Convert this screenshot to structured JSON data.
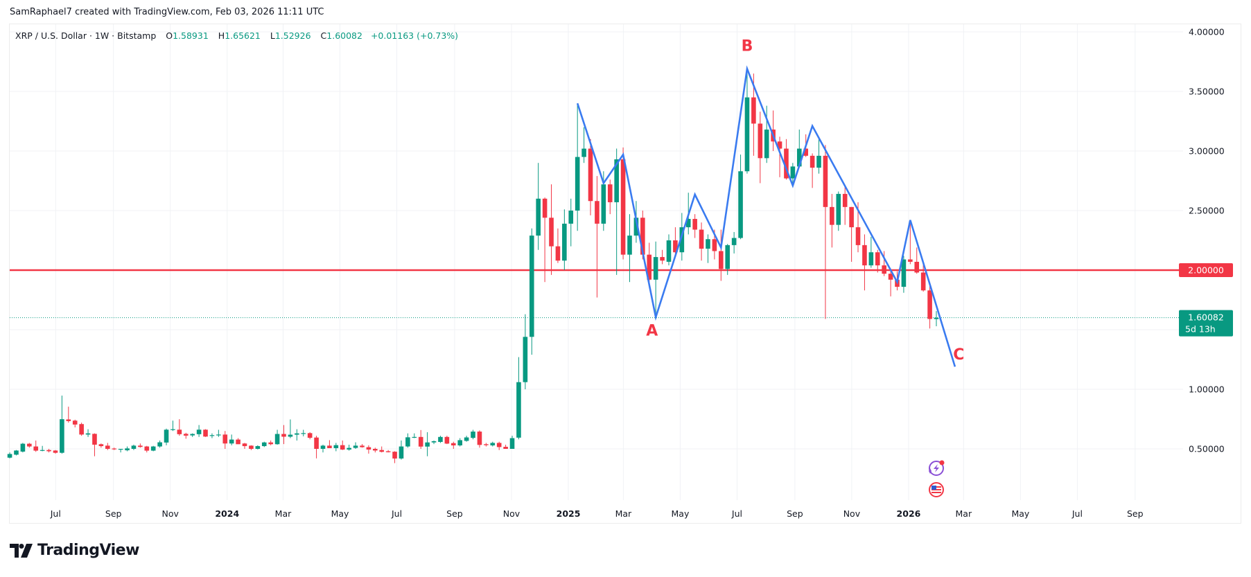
{
  "header": {
    "text": "SamRaphael7 created with TradingView.com, Feb 03, 2026 11:11 UTC"
  },
  "legend": {
    "symbol": "XRP / U.S. Dollar · 1W · Bitstamp",
    "o_label": "O",
    "o": "1.58931",
    "h_label": "H",
    "h": "1.65621",
    "l_label": "L",
    "l": "1.52926",
    "c_label": "C",
    "c": "1.60082",
    "change": "+0.01163 (+0.73%)"
  },
  "colors": {
    "up": "#089981",
    "down": "#f23645",
    "wave": "#3a7bf0",
    "level": "#f23645",
    "grid": "#f0f3fa"
  },
  "price_axis": {
    "ticks": [
      {
        "value": 4.0,
        "label": "4.00000"
      },
      {
        "value": 3.5,
        "label": "3.50000"
      },
      {
        "value": 3.0,
        "label": "3.00000"
      },
      {
        "value": 2.5,
        "label": "2.50000"
      },
      {
        "value": 1.0,
        "label": "1.00000"
      },
      {
        "value": 0.5,
        "label": "0.50000"
      }
    ],
    "level_line": {
      "value": 2.0,
      "label": "2.00000"
    },
    "last_price": {
      "value": 1.60082,
      "label": "1.60082",
      "countdown": "5d 13h"
    }
  },
  "time_axis": {
    "ticks": [
      {
        "date": "2023-07-01",
        "label": "Jul",
        "bold": false
      },
      {
        "date": "2023-09-01",
        "label": "Sep",
        "bold": false
      },
      {
        "date": "2023-11-01",
        "label": "Nov",
        "bold": false
      },
      {
        "date": "2024-01-01",
        "label": "2024",
        "bold": true
      },
      {
        "date": "2024-03-01",
        "label": "Mar",
        "bold": false
      },
      {
        "date": "2024-05-01",
        "label": "May",
        "bold": false
      },
      {
        "date": "2024-07-01",
        "label": "Jul",
        "bold": false
      },
      {
        "date": "2024-09-01",
        "label": "Sep",
        "bold": false
      },
      {
        "date": "2024-11-01",
        "label": "Nov",
        "bold": false
      },
      {
        "date": "2025-01-01",
        "label": "2025",
        "bold": true
      },
      {
        "date": "2025-03-01",
        "label": "Mar",
        "bold": false
      },
      {
        "date": "2025-05-01",
        "label": "May",
        "bold": false
      },
      {
        "date": "2025-07-01",
        "label": "Jul",
        "bold": false
      },
      {
        "date": "2025-09-01",
        "label": "Sep",
        "bold": false
      },
      {
        "date": "2025-11-01",
        "label": "Nov",
        "bold": false
      },
      {
        "date": "2026-01-01",
        "label": "2026",
        "bold": true
      },
      {
        "date": "2026-03-01",
        "label": "Mar",
        "bold": false
      },
      {
        "date": "2026-05-01",
        "label": "May",
        "bold": false
      },
      {
        "date": "2026-07-01",
        "label": "Jul",
        "bold": false
      },
      {
        "date": "2026-09-01",
        "label": "Sep",
        "bold": false
      }
    ]
  },
  "chart_data": {
    "type": "candlestick",
    "symbol": "XRP / U.S. Dollar",
    "interval": "1W",
    "exchange": "Bitstamp",
    "ylim": [
      0.1,
      4.0
    ],
    "grid": true,
    "columns": [
      "date",
      "open",
      "high",
      "low",
      "close"
    ],
    "candles": [
      [
        "2023-05-15",
        0.426,
        0.47,
        0.42,
        0.457
      ],
      [
        "2023-05-22",
        0.451,
        0.49,
        0.445,
        0.486
      ],
      [
        "2023-05-29",
        0.477,
        0.55,
        0.47,
        0.543
      ],
      [
        "2023-06-05",
        0.543,
        0.55,
        0.51,
        0.52
      ],
      [
        "2023-06-12",
        0.52,
        0.57,
        0.475,
        0.485
      ],
      [
        "2023-06-19",
        0.49,
        0.525,
        0.48,
        0.49
      ],
      [
        "2023-06-26",
        0.49,
        0.5,
        0.47,
        0.48
      ],
      [
        "2023-07-03",
        0.486,
        0.49,
        0.46,
        0.467
      ],
      [
        "2023-07-10",
        0.467,
        0.947,
        0.46,
        0.749
      ],
      [
        "2023-07-17",
        0.747,
        0.854,
        0.72,
        0.733
      ],
      [
        "2023-07-24",
        0.737,
        0.745,
        0.68,
        0.704
      ],
      [
        "2023-07-31",
        0.708,
        0.72,
        0.61,
        0.62
      ],
      [
        "2023-08-07",
        0.62,
        0.665,
        0.6,
        0.63
      ],
      [
        "2023-08-14",
        0.626,
        0.63,
        0.438,
        0.535
      ],
      [
        "2023-08-21",
        0.539,
        0.545,
        0.51,
        0.523
      ],
      [
        "2023-08-28",
        0.527,
        0.55,
        0.49,
        0.5
      ],
      [
        "2023-09-04",
        0.503,
        0.51,
        0.49,
        0.496
      ],
      [
        "2023-09-11",
        0.496,
        0.5,
        0.47,
        0.5
      ],
      [
        "2023-09-18",
        0.488,
        0.52,
        0.48,
        0.504
      ],
      [
        "2023-09-25",
        0.5,
        0.535,
        0.49,
        0.527
      ],
      [
        "2023-10-02",
        0.527,
        0.545,
        0.51,
        0.516
      ],
      [
        "2023-10-09",
        0.52,
        0.525,
        0.47,
        0.485
      ],
      [
        "2023-10-16",
        0.485,
        0.525,
        0.48,
        0.52
      ],
      [
        "2023-10-23",
        0.52,
        0.57,
        0.51,
        0.555
      ],
      [
        "2023-10-30",
        0.553,
        0.67,
        0.53,
        0.661
      ],
      [
        "2023-11-06",
        0.66,
        0.737,
        0.65,
        0.665
      ],
      [
        "2023-11-13",
        0.661,
        0.749,
        0.61,
        0.623
      ],
      [
        "2023-11-20",
        0.626,
        0.635,
        0.585,
        0.611
      ],
      [
        "2023-11-27",
        0.613,
        0.63,
        0.6,
        0.625
      ],
      [
        "2023-12-04",
        0.623,
        0.7,
        0.6,
        0.661
      ],
      [
        "2023-12-11",
        0.661,
        0.665,
        0.6,
        0.603
      ],
      [
        "2023-12-18",
        0.61,
        0.63,
        0.59,
        0.615
      ],
      [
        "2023-12-25",
        0.613,
        0.66,
        0.6,
        0.62
      ],
      [
        "2024-01-01",
        0.62,
        0.65,
        0.5,
        0.545
      ],
      [
        "2024-01-08",
        0.545,
        0.62,
        0.53,
        0.578
      ],
      [
        "2024-01-15",
        0.578,
        0.59,
        0.54,
        0.539
      ],
      [
        "2024-01-22",
        0.545,
        0.55,
        0.5,
        0.523
      ],
      [
        "2024-01-29",
        0.527,
        0.53,
        0.49,
        0.5
      ],
      [
        "2024-02-05",
        0.5,
        0.53,
        0.495,
        0.523
      ],
      [
        "2024-02-12",
        0.523,
        0.56,
        0.515,
        0.554
      ],
      [
        "2024-02-19",
        0.554,
        0.57,
        0.53,
        0.539
      ],
      [
        "2024-02-26",
        0.539,
        0.66,
        0.535,
        0.625
      ],
      [
        "2024-03-04",
        0.625,
        0.7,
        0.54,
        0.602
      ],
      [
        "2024-03-11",
        0.602,
        0.747,
        0.59,
        0.619
      ],
      [
        "2024-03-18",
        0.619,
        0.665,
        0.57,
        0.63
      ],
      [
        "2024-03-25",
        0.63,
        0.66,
        0.605,
        0.632
      ],
      [
        "2024-04-01",
        0.632,
        0.64,
        0.58,
        0.593
      ],
      [
        "2024-04-08",
        0.595,
        0.61,
        0.42,
        0.5
      ],
      [
        "2024-04-15",
        0.5,
        0.535,
        0.47,
        0.527
      ],
      [
        "2024-04-22",
        0.527,
        0.573,
        0.51,
        0.506
      ],
      [
        "2024-04-29",
        0.506,
        0.55,
        0.48,
        0.531
      ],
      [
        "2024-05-06",
        0.531,
        0.57,
        0.49,
        0.494
      ],
      [
        "2024-05-13",
        0.494,
        0.535,
        0.485,
        0.508
      ],
      [
        "2024-05-20",
        0.508,
        0.555,
        0.5,
        0.527
      ],
      [
        "2024-05-27",
        0.527,
        0.54,
        0.51,
        0.514
      ],
      [
        "2024-06-03",
        0.514,
        0.53,
        0.46,
        0.494
      ],
      [
        "2024-06-10",
        0.5,
        0.51,
        0.47,
        0.486
      ],
      [
        "2024-06-17",
        0.49,
        0.52,
        0.47,
        0.475
      ],
      [
        "2024-06-24",
        0.48,
        0.49,
        0.47,
        0.472
      ],
      [
        "2024-07-01",
        0.476,
        0.48,
        0.38,
        0.419
      ],
      [
        "2024-07-08",
        0.419,
        0.57,
        0.41,
        0.52
      ],
      [
        "2024-07-15",
        0.52,
        0.63,
        0.51,
        0.597
      ],
      [
        "2024-07-22",
        0.6,
        0.63,
        0.59,
        0.6
      ],
      [
        "2024-07-29",
        0.6,
        0.658,
        0.5,
        0.519
      ],
      [
        "2024-08-05",
        0.519,
        0.64,
        0.438,
        0.554
      ],
      [
        "2024-08-12",
        0.554,
        0.57,
        0.54,
        0.564
      ],
      [
        "2024-08-19",
        0.558,
        0.61,
        0.55,
        0.6
      ],
      [
        "2024-08-26",
        0.6,
        0.61,
        0.54,
        0.544
      ],
      [
        "2024-09-02",
        0.548,
        0.56,
        0.5,
        0.529
      ],
      [
        "2024-09-09",
        0.529,
        0.59,
        0.52,
        0.573
      ],
      [
        "2024-09-16",
        0.567,
        0.61,
        0.56,
        0.596
      ],
      [
        "2024-09-23",
        0.592,
        0.66,
        0.58,
        0.645
      ],
      [
        "2024-09-30",
        0.645,
        0.655,
        0.51,
        0.533
      ],
      [
        "2024-10-07",
        0.539,
        0.55,
        0.52,
        0.531
      ],
      [
        "2024-10-14",
        0.529,
        0.56,
        0.52,
        0.55
      ],
      [
        "2024-10-21",
        0.55,
        0.56,
        0.49,
        0.515
      ],
      [
        "2024-10-28",
        0.517,
        0.535,
        0.5,
        0.5
      ],
      [
        "2024-11-04",
        0.5,
        0.61,
        0.5,
        0.59
      ],
      [
        "2024-11-11",
        0.594,
        1.27,
        0.58,
        1.06
      ],
      [
        "2024-11-18",
        1.06,
        1.63,
        1.0,
        1.44
      ],
      [
        "2024-11-25",
        1.44,
        2.35,
        1.29,
        2.29
      ],
      [
        "2024-12-02",
        2.29,
        2.9,
        2.17,
        2.6
      ],
      [
        "2024-12-09",
        2.6,
        2.61,
        1.9,
        2.44
      ],
      [
        "2024-12-16",
        2.44,
        2.72,
        1.96,
        2.2
      ],
      [
        "2024-12-23",
        2.2,
        2.35,
        2.06,
        2.08
      ],
      [
        "2024-12-30",
        2.08,
        2.51,
        2.0,
        2.39
      ],
      [
        "2025-01-06",
        2.39,
        2.6,
        2.2,
        2.5
      ],
      [
        "2025-01-13",
        2.5,
        3.4,
        2.33,
        2.95
      ],
      [
        "2025-01-20",
        2.95,
        3.2,
        2.9,
        3.02
      ],
      [
        "2025-01-27",
        3.02,
        3.1,
        2.46,
        2.58
      ],
      [
        "2025-02-03",
        2.58,
        2.79,
        1.77,
        2.39
      ],
      [
        "2025-02-10",
        2.39,
        2.83,
        2.33,
        2.72
      ],
      [
        "2025-02-17",
        2.72,
        2.76,
        2.47,
        2.57
      ],
      [
        "2025-02-24",
        2.57,
        3.02,
        1.96,
        2.93
      ],
      [
        "2025-03-03",
        2.93,
        3.03,
        2.09,
        2.13
      ],
      [
        "2025-03-10",
        2.13,
        2.47,
        1.9,
        2.29
      ],
      [
        "2025-03-17",
        2.29,
        2.58,
        2.23,
        2.44
      ],
      [
        "2025-03-24",
        2.44,
        2.5,
        2.09,
        2.13
      ],
      [
        "2025-03-31",
        2.13,
        2.23,
        1.9,
        1.92
      ],
      [
        "2025-04-07",
        1.92,
        2.24,
        1.61,
        2.11
      ],
      [
        "2025-04-14",
        2.11,
        2.17,
        2.05,
        2.08
      ],
      [
        "2025-04-21",
        2.07,
        2.3,
        2.04,
        2.25
      ],
      [
        "2025-04-28",
        2.25,
        2.36,
        2.13,
        2.15
      ],
      [
        "2025-05-05",
        2.15,
        2.48,
        2.08,
        2.36
      ],
      [
        "2025-05-12",
        2.36,
        2.65,
        2.3,
        2.43
      ],
      [
        "2025-05-19",
        2.43,
        2.47,
        2.27,
        2.34
      ],
      [
        "2025-05-26",
        2.34,
        2.4,
        2.08,
        2.18
      ],
      [
        "2025-06-02",
        2.18,
        2.3,
        2.06,
        2.26
      ],
      [
        "2025-06-09",
        2.26,
        2.34,
        2.09,
        2.16
      ],
      [
        "2025-06-16",
        2.16,
        2.34,
        1.91,
        2.01
      ],
      [
        "2025-06-23",
        2.01,
        2.22,
        1.96,
        2.21
      ],
      [
        "2025-06-30",
        2.21,
        2.32,
        2.14,
        2.27
      ],
      [
        "2025-07-07",
        2.27,
        2.97,
        2.26,
        2.83
      ],
      [
        "2025-07-14",
        2.83,
        3.67,
        2.81,
        3.45
      ],
      [
        "2025-07-21",
        3.45,
        3.65,
        2.96,
        3.23
      ],
      [
        "2025-07-28",
        3.23,
        3.33,
        2.73,
        2.94
      ],
      [
        "2025-08-04",
        2.94,
        3.38,
        2.9,
        3.18
      ],
      [
        "2025-08-11",
        3.18,
        3.34,
        3.0,
        3.08
      ],
      [
        "2025-08-18",
        3.08,
        3.12,
        2.78,
        3.02
      ],
      [
        "2025-08-25",
        3.02,
        3.1,
        2.76,
        2.77
      ],
      [
        "2025-09-01",
        2.77,
        2.9,
        2.7,
        2.87
      ],
      [
        "2025-09-08",
        2.87,
        3.18,
        2.86,
        3.02
      ],
      [
        "2025-09-15",
        3.02,
        3.14,
        2.95,
        2.96
      ],
      [
        "2025-09-22",
        2.96,
        2.98,
        2.69,
        2.86
      ],
      [
        "2025-09-29",
        2.86,
        3.1,
        2.81,
        2.96
      ],
      [
        "2025-10-06",
        2.96,
        3.05,
        1.59,
        2.53
      ],
      [
        "2025-10-13",
        2.53,
        2.64,
        2.19,
        2.38
      ],
      [
        "2025-10-20",
        2.38,
        2.66,
        2.33,
        2.64
      ],
      [
        "2025-10-27",
        2.64,
        2.7,
        2.38,
        2.53
      ],
      [
        "2025-11-03",
        2.53,
        2.53,
        2.07,
        2.36
      ],
      [
        "2025-11-10",
        2.36,
        2.57,
        2.15,
        2.21
      ],
      [
        "2025-11-17",
        2.21,
        2.3,
        1.83,
        2.04
      ],
      [
        "2025-11-24",
        2.04,
        2.28,
        2.02,
        2.15
      ],
      [
        "2025-12-01",
        2.15,
        2.17,
        1.98,
        2.04
      ],
      [
        "2025-12-08",
        2.04,
        2.16,
        1.95,
        1.97
      ],
      [
        "2025-12-15",
        1.97,
        2.0,
        1.78,
        1.92
      ],
      [
        "2025-12-22",
        1.92,
        1.99,
        1.83,
        1.86
      ],
      [
        "2025-12-29",
        1.86,
        2.12,
        1.81,
        2.09
      ],
      [
        "2026-01-05",
        2.09,
        2.42,
        2.05,
        2.07
      ],
      [
        "2026-01-12",
        2.07,
        2.19,
        1.97,
        1.98
      ],
      [
        "2026-01-19",
        1.98,
        2.06,
        1.82,
        1.83
      ],
      [
        "2026-01-26",
        1.83,
        1.88,
        1.51,
        1.59
      ],
      [
        "2026-02-02",
        1.58931,
        1.65621,
        1.52926,
        1.60082
      ]
    ],
    "wave_path": [
      {
        "date": "2025-01-13",
        "price": 3.4
      },
      {
        "date": "2025-02-10",
        "price": 2.73
      },
      {
        "date": "2025-03-03",
        "price": 2.97
      },
      {
        "date": "2025-04-07",
        "price": 1.605
      },
      {
        "date": "2025-05-19",
        "price": 2.635
      },
      {
        "date": "2025-06-16",
        "price": 2.19
      },
      {
        "date": "2025-07-14",
        "price": 3.69
      },
      {
        "date": "2025-09-01",
        "price": 2.71
      },
      {
        "date": "2025-09-22",
        "price": 3.21
      },
      {
        "date": "2025-12-22",
        "price": 1.9
      },
      {
        "date": "2026-01-05",
        "price": 2.42
      },
      {
        "date": "2026-02-22",
        "price": 1.19
      }
    ],
    "wave_labels": [
      {
        "label": "A",
        "date": "2025-04-03",
        "price": 1.45
      },
      {
        "label": "B",
        "date": "2025-07-14",
        "price": 3.84
      },
      {
        "label": "C",
        "date": "2026-02-26",
        "price": 1.25
      }
    ],
    "events": [
      {
        "icon": "crypto-event-lightning-icon",
        "date": "2026-02-02"
      },
      {
        "icon": "us-economic-event-flag-icon",
        "date": "2026-02-02"
      }
    ]
  },
  "footer": {
    "logo_text": "TradingView"
  }
}
